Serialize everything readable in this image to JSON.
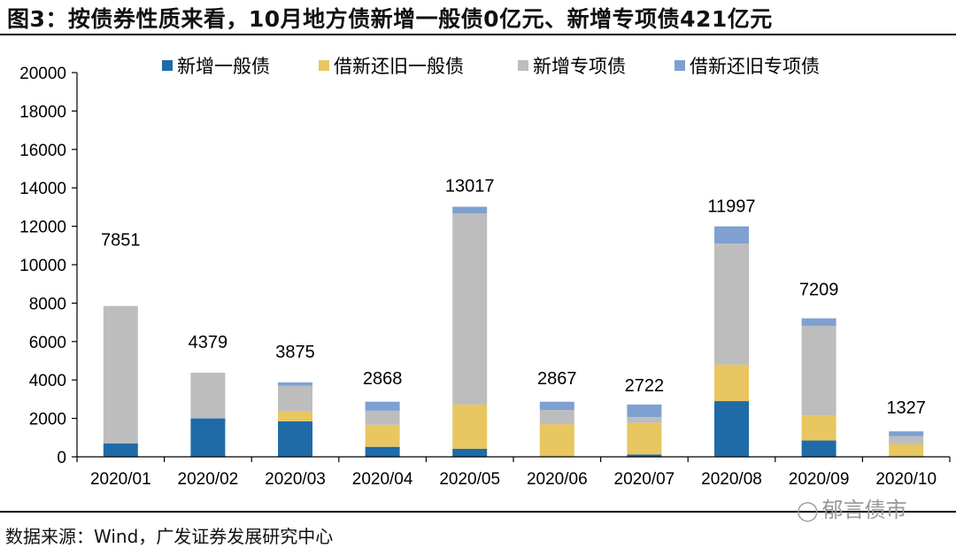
{
  "header": {
    "title": "图3：按债券性质来看，10月地方债新增一般债0亿元、新增专项债421亿元"
  },
  "footer": {
    "source": "数据来源：Wind，广发证券发展研究中心",
    "watermark_text": "郁言债市",
    "watermark_icon": "wechat-icon"
  },
  "colors": {
    "new_general": "#1F6BA8",
    "refinance_general": "#E8C660",
    "new_special": "#BDBDBD",
    "refinance_special": "#7EA1D1"
  },
  "chart_data": {
    "type": "bar",
    "stacked": true,
    "title": "按债券性质来看，10月地方债新增一般债0亿元、新增专项债421亿元",
    "xlabel": "",
    "ylabel": "",
    "ylim": [
      0,
      20000
    ],
    "yticks": [
      0,
      2000,
      4000,
      6000,
      8000,
      10000,
      12000,
      14000,
      16000,
      18000,
      20000
    ],
    "grid": false,
    "legend_position": "top",
    "categories": [
      "2020/01",
      "2020/02",
      "2020/03",
      "2020/04",
      "2020/05",
      "2020/06",
      "2020/07",
      "2020/08",
      "2020/09",
      "2020/10"
    ],
    "series": [
      {
        "name": "新增一般债",
        "key": "new_general",
        "values": [
          700,
          2000,
          1850,
          520,
          420,
          0,
          120,
          2900,
          850,
          0
        ]
      },
      {
        "name": "借新还旧一般债",
        "key": "refinance_general",
        "values": [
          0,
          0,
          520,
          1150,
          2300,
          1700,
          1650,
          1900,
          1300,
          650
        ]
      },
      {
        "name": "新增专项债",
        "key": "new_special",
        "values": [
          7151,
          2379,
          1325,
          730,
          9947,
          730,
          300,
          6300,
          4659,
          421
        ]
      },
      {
        "name": "借新还旧专项债",
        "key": "refinance_special",
        "values": [
          0,
          0,
          180,
          468,
          350,
          437,
          652,
          897,
          400,
          256
        ]
      }
    ],
    "totals": [
      7851,
      4379,
      3875,
      2868,
      13017,
      2867,
      2722,
      11997,
      7209,
      1327
    ]
  }
}
